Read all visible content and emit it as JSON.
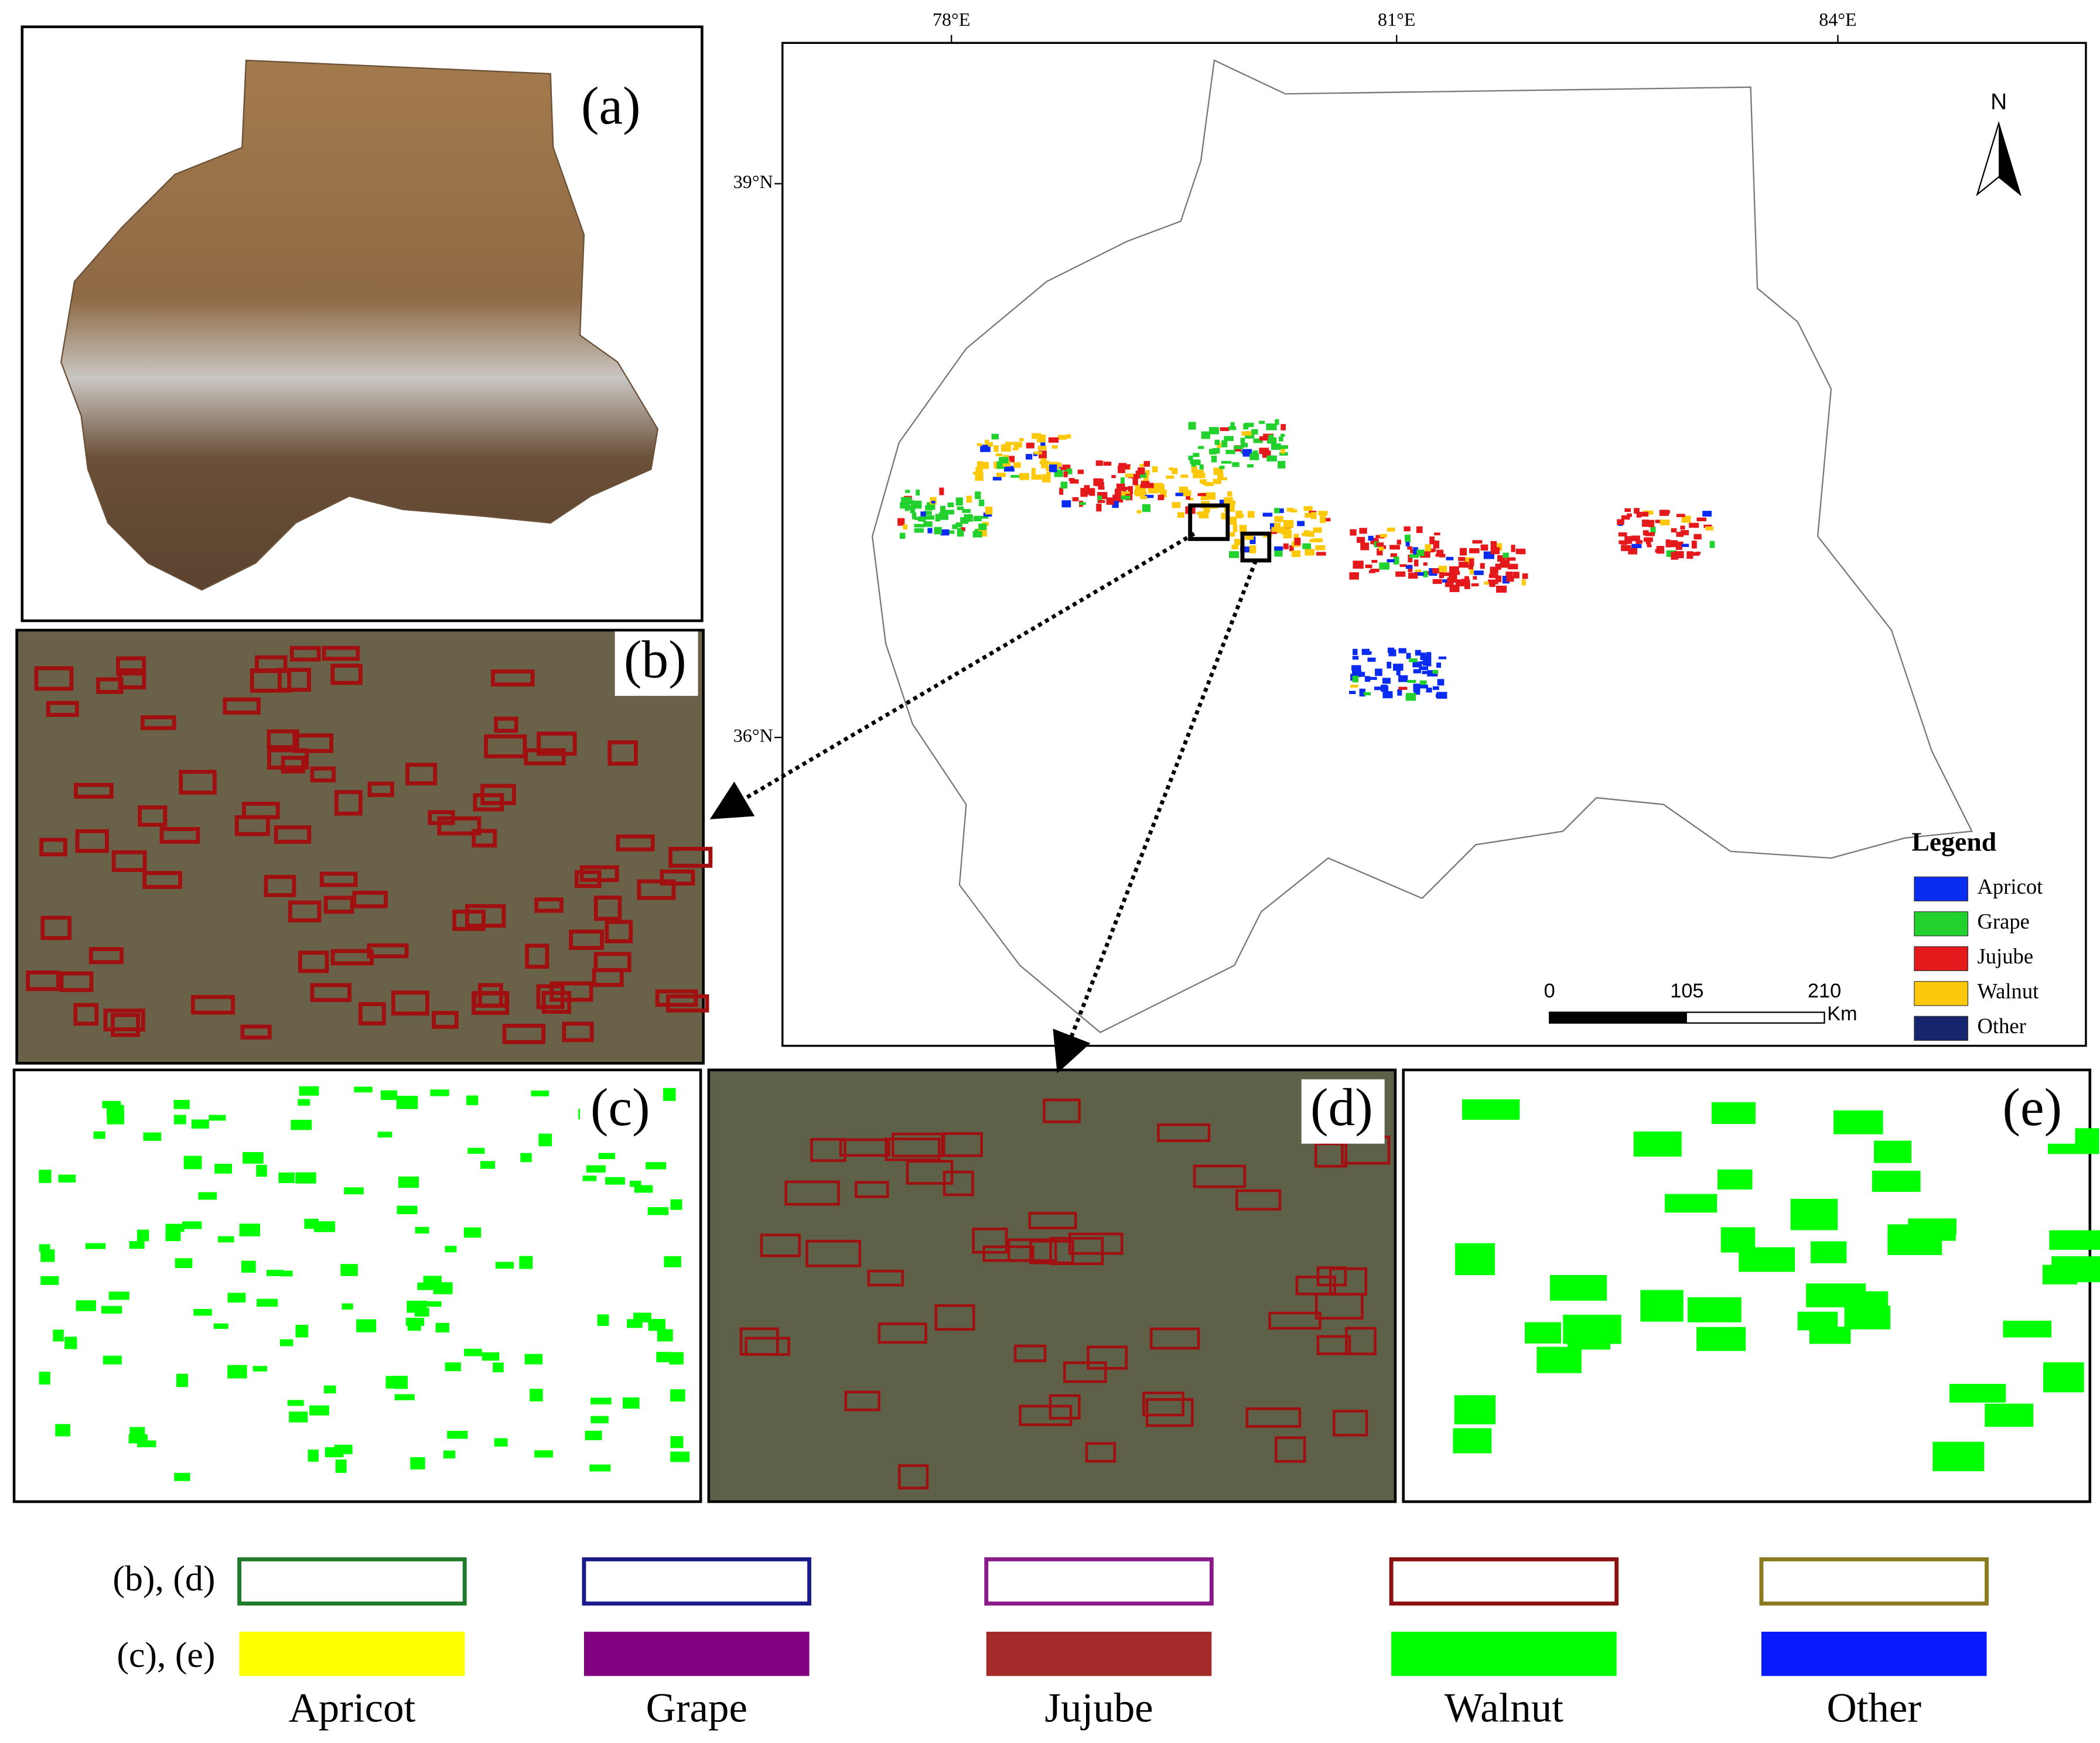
{
  "panels": [
    {
      "label": "(a)"
    },
    {
      "label": "(b)"
    },
    {
      "label": "(c)"
    },
    {
      "label": "(d)"
    },
    {
      "label": "(e)"
    }
  ],
  "map": {
    "lon_ticks": [
      "78°E",
      "81°E",
      "84°E"
    ],
    "lat_ticks": [
      "39°N",
      "36°N"
    ],
    "north": "N",
    "legend": {
      "title": "Legend",
      "items": [
        {
          "name": "Apricot",
          "color": "#0a2cf0"
        },
        {
          "name": "Grape",
          "color": "#22d12e"
        },
        {
          "name": "Jujube",
          "color": "#e3191c"
        },
        {
          "name": "Walnut",
          "color": "#fcc80a"
        },
        {
          "name": "Other",
          "color": "#17246e"
        }
      ]
    },
    "scale_bar": {
      "ticks": [
        0,
        105,
        210
      ],
      "unit": "Km"
    }
  },
  "bottom_legend": {
    "rows": [
      "(b), (d)",
      "(c), (e)"
    ],
    "classes": [
      {
        "name": "Apricot",
        "outline": "#1f7a2a",
        "fill": "#ffff00"
      },
      {
        "name": "Grape",
        "outline": "#1a1a8a",
        "fill": "#800080"
      },
      {
        "name": "Jujube",
        "outline": "#8a1a8a",
        "fill": "#a52a2a"
      },
      {
        "name": "Walnut",
        "outline": "#8b1010",
        "fill": "#00ff00"
      },
      {
        "name": "Other",
        "outline": "#8a7a20",
        "fill": "#0a1aff"
      }
    ]
  }
}
